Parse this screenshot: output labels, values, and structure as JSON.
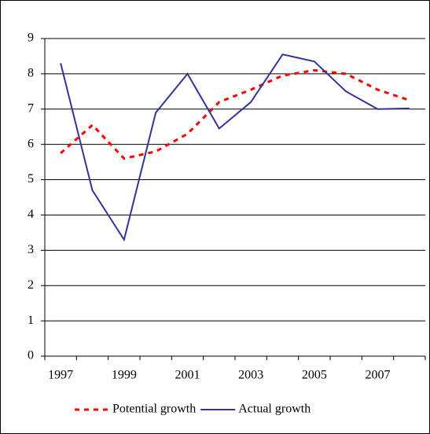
{
  "chart_data": {
    "type": "line",
    "categories": [
      "1997",
      null,
      "1999",
      null,
      "2001",
      null,
      "2003",
      null,
      "2005",
      null,
      "2007",
      null
    ],
    "series": [
      {
        "name": "Potential growth",
        "color": "#ff0000",
        "dashed": true,
        "values": [
          5.75,
          6.55,
          5.6,
          5.8,
          6.3,
          7.2,
          7.55,
          7.95,
          8.1,
          8.0,
          7.55,
          7.25
        ]
      },
      {
        "name": "Actual growth",
        "color": "#333399",
        "dashed": false,
        "values": [
          8.3,
          4.7,
          3.3,
          6.9,
          8.0,
          6.45,
          7.2,
          8.55,
          8.35,
          7.5,
          7.0,
          7.02
        ]
      }
    ],
    "ylim": [
      0,
      9
    ],
    "yticks": [
      0,
      1,
      2,
      3,
      4,
      5,
      6,
      7,
      8,
      9
    ],
    "grid": true,
    "legend": "bottom"
  }
}
